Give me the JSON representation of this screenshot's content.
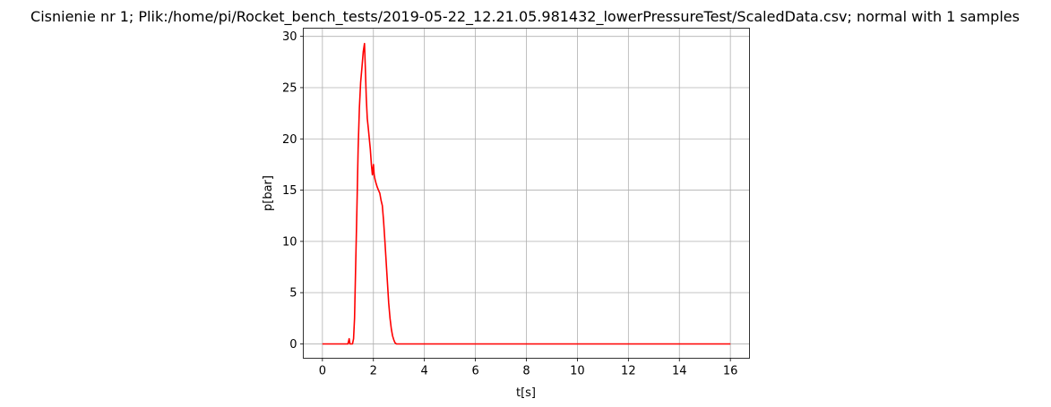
{
  "chart_data": {
    "type": "line",
    "title": "Cisnienie nr 1; Plik:/home/pi/Rocket_bench_tests/2019-05-22_12.21.05.981432_lowerPressureTest/ScaledData.csv; normal with 1 samples",
    "xlabel": "t[s]",
    "ylabel": "p[bar]",
    "xlim": [
      -0.75,
      16.75
    ],
    "ylim": [
      -1.4,
      30.8
    ],
    "xticks": [
      0,
      2,
      4,
      6,
      8,
      10,
      12,
      14,
      16
    ],
    "yticks": [
      0,
      5,
      10,
      15,
      20,
      25,
      30
    ],
    "grid": true,
    "series": [
      {
        "color": "#ff0000",
        "x": [
          0,
          1.0,
          1.05,
          1.08,
          1.12,
          1.18,
          1.22,
          1.26,
          1.3,
          1.35,
          1.4,
          1.45,
          1.5,
          1.55,
          1.6,
          1.65,
          1.68,
          1.72,
          1.76,
          1.8,
          1.84,
          1.88,
          1.92,
          1.96,
          2.0,
          2.03,
          2.05,
          2.07,
          2.1,
          2.15,
          2.2,
          2.25,
          2.3,
          2.35,
          2.4,
          2.45,
          2.5,
          2.55,
          2.6,
          2.65,
          2.7,
          2.75,
          2.8,
          2.85,
          2.9,
          2.95,
          3.0,
          3.05,
          3.1,
          4.0,
          6.0,
          8.0,
          10.0,
          12.0,
          14.0,
          16.0
        ],
        "y": [
          0,
          0,
          0.5,
          0,
          0,
          0,
          0.5,
          2.5,
          7,
          13,
          19,
          23,
          25.5,
          27,
          28.5,
          29.3,
          27,
          24,
          22,
          21,
          20,
          19,
          17.5,
          16.5,
          17.5,
          16.5,
          16.2,
          16,
          15.7,
          15.3,
          15,
          14.7,
          14,
          13.5,
          12,
          10,
          8,
          6,
          4,
          2.5,
          1.5,
          0.8,
          0.4,
          0.1,
          0,
          0,
          0,
          0,
          0,
          0,
          0,
          0,
          0,
          0,
          0,
          0
        ]
      }
    ]
  }
}
